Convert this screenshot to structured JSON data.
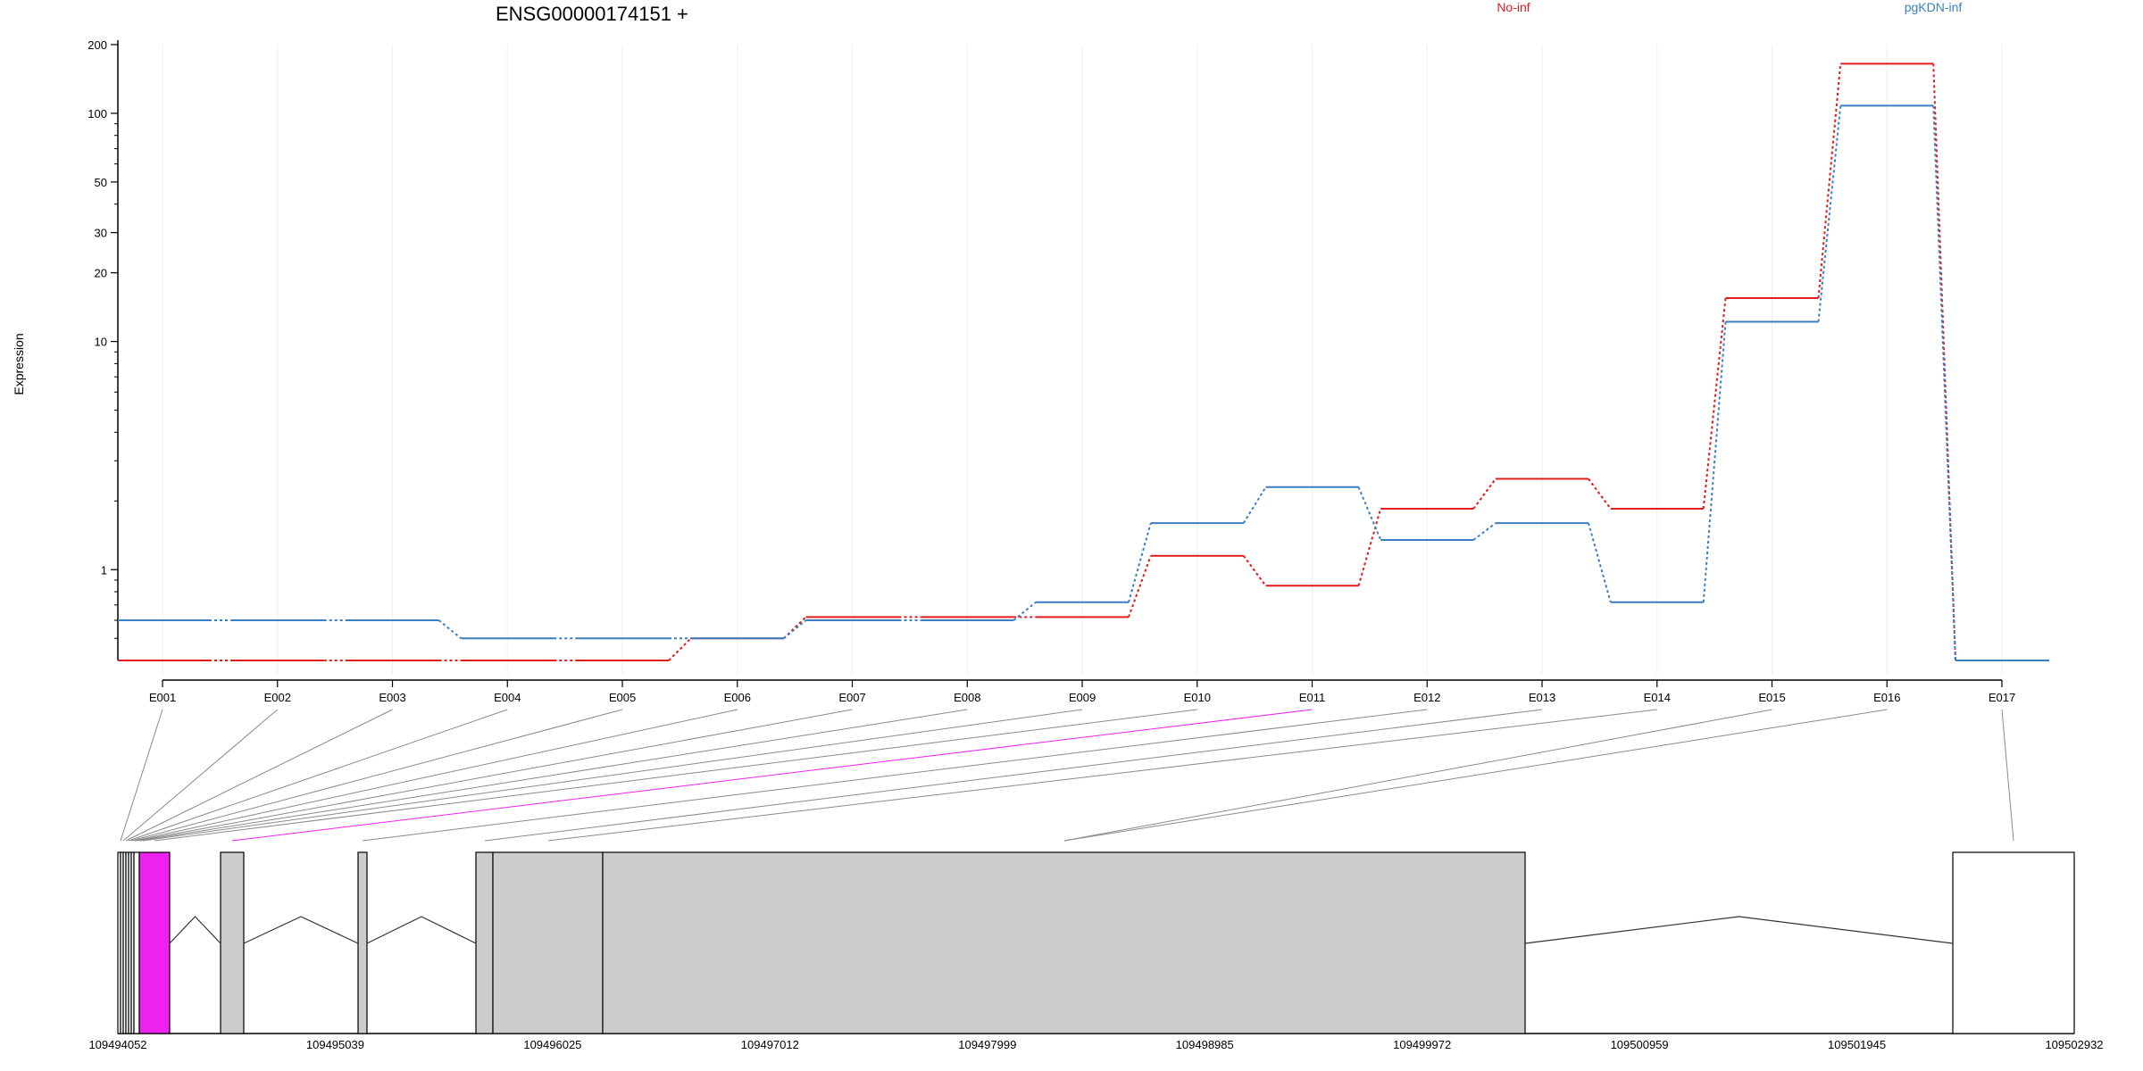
{
  "chart_data": {
    "type": "line",
    "title": "ENSG00000174151 +",
    "ylabel": "Expression",
    "y_scale": "log",
    "ylim": [
      0.4,
      200
    ],
    "y_ticks": [
      1,
      10,
      20,
      30,
      50,
      100,
      200
    ],
    "categories": [
      "E001",
      "E002",
      "E003",
      "E004",
      "E005",
      "E006",
      "E007",
      "E008",
      "E009",
      "E010",
      "E011",
      "E012",
      "E013",
      "E014",
      "E015",
      "E016",
      "E017"
    ],
    "series": [
      {
        "name": "No-inf",
        "color": "#e31a1c",
        "values": [
          0.4,
          0.4,
          0.4,
          0.4,
          0.4,
          0.5,
          0.62,
          0.62,
          0.62,
          1.15,
          0.85,
          1.85,
          2.5,
          1.85,
          15.5,
          165,
          0.4
        ]
      },
      {
        "name": "pgKDN-inf",
        "color": "#3a7fc1",
        "values": [
          0.6,
          0.6,
          0.6,
          0.5,
          0.5,
          0.5,
          0.6,
          0.6,
          0.72,
          1.6,
          2.3,
          1.35,
          1.6,
          0.72,
          12.2,
          108,
          0.4
        ]
      }
    ],
    "gene_model": {
      "coord_ticks": [
        "109494052",
        "109495039",
        "109496025",
        "109497012",
        "109497999",
        "109498985",
        "109499972",
        "109500959",
        "109501945",
        "109502932"
      ],
      "highlighted_exon": "E011",
      "highlight_color": "#ee22ee",
      "exon_fill": "#cccccc"
    }
  }
}
